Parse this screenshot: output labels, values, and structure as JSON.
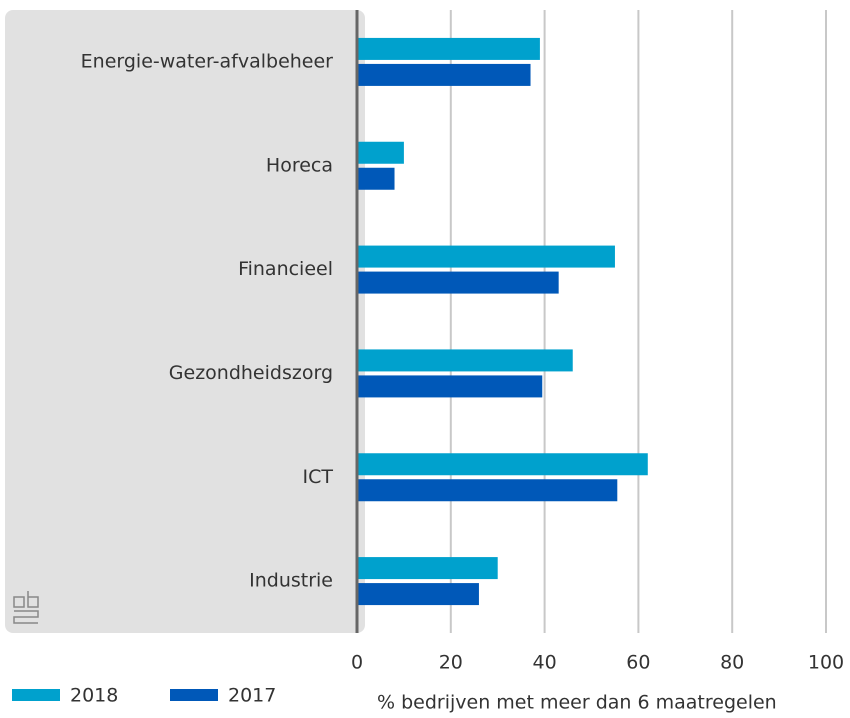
{
  "chart_data": {
    "type": "hbar",
    "categories": [
      "Energie-water-afvalbeheer",
      "Horeca",
      "Financieel",
      "Gezondheidszorg",
      "ICT",
      "Industrie"
    ],
    "series": [
      {
        "name": "2018",
        "color": "#00a1cd",
        "values": [
          39,
          10,
          55,
          46,
          62,
          30
        ]
      },
      {
        "name": "2017",
        "color": "#0058b8",
        "values": [
          37,
          8,
          43,
          39.5,
          55.5,
          26
        ]
      }
    ],
    "xlim": [
      0,
      100
    ],
    "xticks": [
      0,
      20,
      40,
      60,
      80,
      100
    ],
    "grid": true,
    "x_label": "% bedrijven met meer dan 6 maatregelen",
    "legend": "bottom-left"
  }
}
